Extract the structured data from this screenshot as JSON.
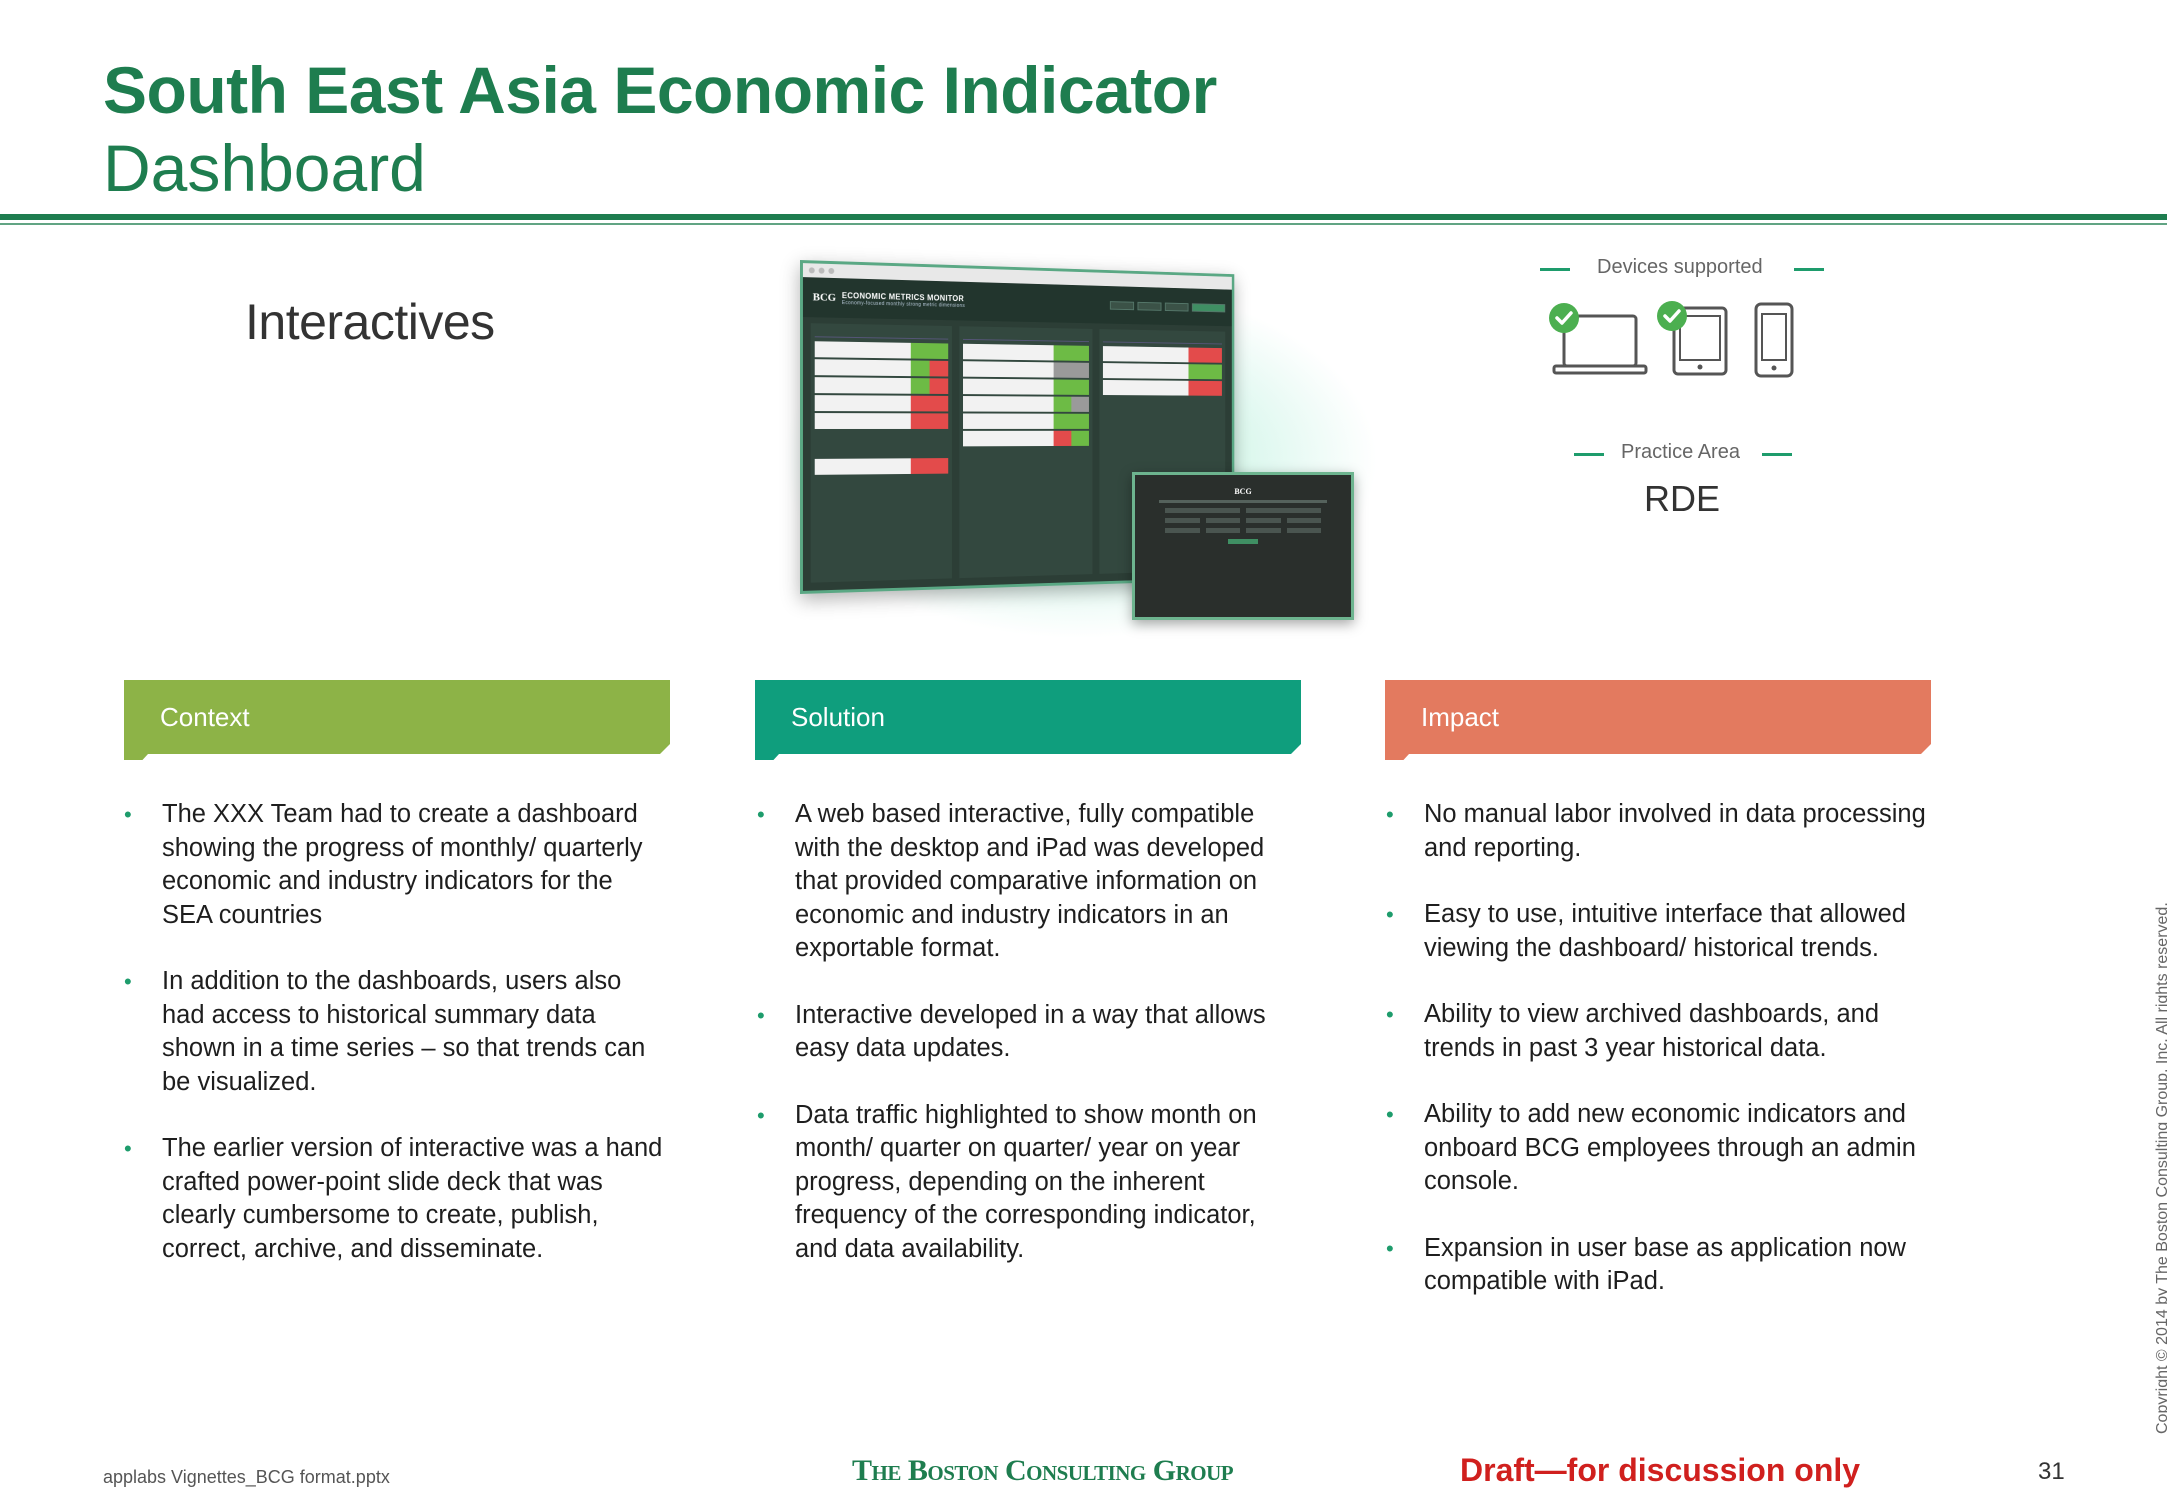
{
  "header": {
    "title": "South East Asia Economic Indicator",
    "subtitle": "Dashboard"
  },
  "section_label": "Interactives",
  "screenshot": {
    "app_logo": "BCG",
    "app_name": "ECONOMIC METRICS MONITOR",
    "app_tagline": "Economy-focused monthly strong metric dimensions"
  },
  "devices": {
    "label": "Devices supported",
    "icons": [
      "laptop-icon",
      "tablet-icon",
      "phone-icon"
    ]
  },
  "practice": {
    "label": "Practice Area",
    "value": "RDE"
  },
  "colors": {
    "brand_green": "#1e7d4f",
    "context": "#8db347",
    "solution": "#0f9e7d",
    "impact": "#e37a5f",
    "draft_red": "#d0201e"
  },
  "columns": [
    {
      "heading": "Context",
      "bullets": [
        "The XXX Team had to create a dashboard showing the progress of monthly/ quarterly economic and industry indicators for the SEA countries",
        "In addition to the dashboards, users also had access to historical summary data shown in a time series – so that trends can be visualized.",
        "The earlier version of interactive was a hand crafted power-point slide deck that was clearly cumbersome to create, publish, correct, archive, and disseminate."
      ]
    },
    {
      "heading": "Solution",
      "bullets": [
        "A web based interactive, fully compatible with the desktop and iPad was developed that provided comparative information on economic and industry indicators in an exportable format.",
        "Interactive developed in a way that allows easy data updates.",
        "Data traffic highlighted to show month on month/ quarter on quarter/ year on year progress, depending on the inherent frequency of the corresponding indicator, and data availability."
      ]
    },
    {
      "heading": "Impact",
      "bullets": [
        "No manual labor involved in data processing and reporting.",
        "Easy to use, intuitive interface that allowed viewing the dashboard/ historical trends.",
        "Ability to  view archived dashboards, and trends in past 3 year historical data.",
        "Ability to add new economic indicators and onboard BCG employees through an admin console.",
        "Expansion in user base as application now compatible with iPad."
      ]
    }
  ],
  "copyright": "Copyright © 2014 by The Boston Consulting Group, Inc. All rights reserved.",
  "footer": {
    "file": "applabs Vignettes_BCG format.pptx",
    "logo": "The Boston Consulting Group",
    "draft": "Draft—for discussion only",
    "page": "31"
  }
}
